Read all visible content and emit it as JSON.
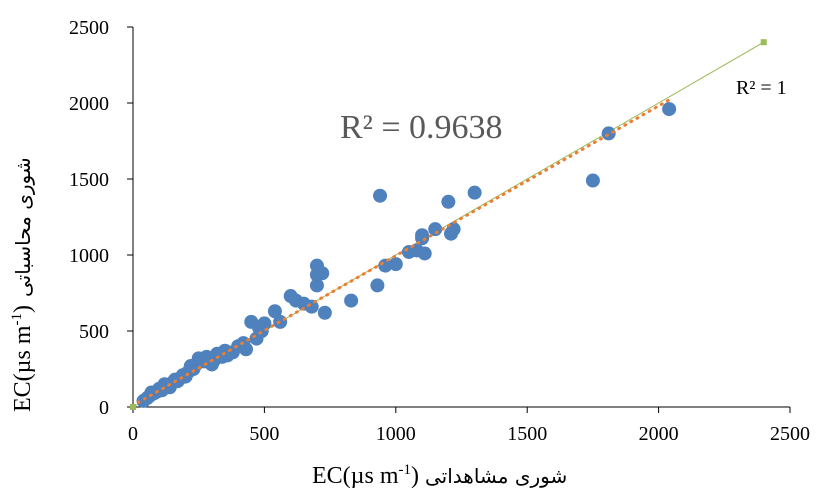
{
  "chart_data": {
    "type": "scatter",
    "title": "",
    "xlabel": "شوری مشاهداتی EC(µs m-1)",
    "ylabel": "شوری محاسباتی EC(µs m-1)",
    "x_axis_text": "EC(µs m",
    "x_axis_sup": "-1",
    "x_axis_close": ")",
    "x_axis_persian": "شوری مشاهداتی",
    "y_axis_text": "EC(µs m",
    "y_axis_sup": "-1",
    "y_axis_close": ")",
    "y_axis_persian": "شوری محاسباتی",
    "xlim": [
      0,
      2500
    ],
    "ylim": [
      0,
      2500
    ],
    "x_ticks": [
      0,
      500,
      1000,
      1500,
      2000,
      2500
    ],
    "y_ticks": [
      0,
      500,
      1000,
      1500,
      2000,
      2500
    ],
    "grid": false,
    "legend": "none",
    "colors": {
      "points": "#4f81bd",
      "fit_line": "#ed7d31",
      "reference_line": "#9bbb59",
      "r2_fit_text": "#595959"
    },
    "annotations": {
      "r2_fit": "R² = 0.9638",
      "r2_reference": "R² = 1"
    },
    "series": [
      {
        "type": "scatter",
        "x": [
          40,
          55,
          65,
          70,
          80,
          90,
          100,
          110,
          120,
          130,
          140,
          150,
          160,
          170,
          180,
          190,
          200,
          210,
          220,
          230,
          240,
          250,
          260,
          270,
          280,
          290,
          300,
          310,
          320,
          340,
          350,
          360,
          380,
          400,
          420,
          430,
          450,
          470,
          480,
          490,
          500,
          540,
          560,
          600,
          620,
          650,
          680,
          700,
          700,
          700,
          720,
          730,
          830,
          930,
          940,
          960,
          1000,
          1050,
          1080,
          1100,
          1100,
          1110,
          1150,
          1200,
          1210,
          1220,
          1300,
          1750,
          1810,
          2040
        ],
        "y": [
          40,
          60,
          75,
          95,
          90,
          100,
          120,
          110,
          150,
          140,
          130,
          160,
          180,
          170,
          190,
          210,
          200,
          230,
          270,
          250,
          280,
          320,
          310,
          300,
          330,
          320,
          280,
          310,
          350,
          330,
          370,
          340,
          360,
          400,
          420,
          380,
          560,
          450,
          520,
          500,
          550,
          630,
          560,
          730,
          700,
          680,
          660,
          800,
          870,
          930,
          880,
          620,
          700,
          800,
          1390,
          930,
          940,
          1020,
          1030,
          1110,
          1130,
          1010,
          1170,
          1350,
          1140,
          1170,
          1410,
          1490,
          1800,
          1960
        ]
      },
      {
        "type": "line",
        "style": "dotted",
        "x": [
          20,
          2040
        ],
        "y": [
          30,
          2020
        ]
      },
      {
        "type": "line",
        "style": "solid",
        "x": [
          0,
          2400
        ],
        "y": [
          0,
          2400
        ]
      }
    ]
  }
}
